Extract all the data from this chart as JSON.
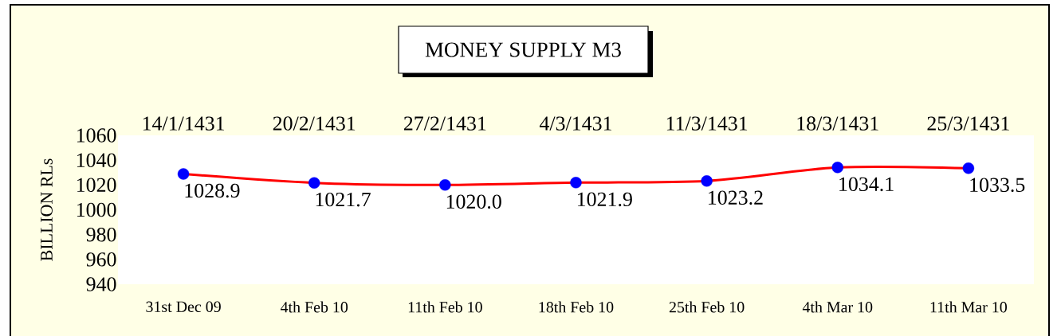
{
  "chart_data": {
    "type": "line",
    "title": "MONEY SUPPLY M3",
    "ylabel": "BILLION RLs",
    "categories": [
      "31st Dec 09",
      "4th Feb 10",
      "11th Feb 10",
      "18th Feb 10",
      "25th Feb 10",
      "4th Mar 10",
      "11th Mar 10"
    ],
    "series": [
      {
        "color": "#ff0000",
        "colors": [
          "#0000ff",
          "#0000ff",
          "#0000ff",
          "#0000ff",
          "#0000ff",
          "#0000ff",
          "#0000ff"
        ],
        "values": [
          1028.9,
          1021.7,
          1020.0,
          1021.9,
          1023.2,
          1034.1,
          1033.5
        ],
        "value_labels": [
          "1028.9",
          "1021.7",
          "1020.0",
          "1021.9",
          "1023.2",
          "1034.1",
          "1033.5"
        ]
      }
    ],
    "annotations": [
      "14/1/1431",
      "20/2/1431",
      "27/2/1431",
      "4/3/1431",
      "11/3/1431",
      "18/3/1431",
      "25/3/1431"
    ],
    "ylim": [
      940,
      1060
    ],
    "yticks": [
      940,
      960,
      980,
      1000,
      1020,
      1040,
      1060
    ],
    "marker": "circle"
  }
}
